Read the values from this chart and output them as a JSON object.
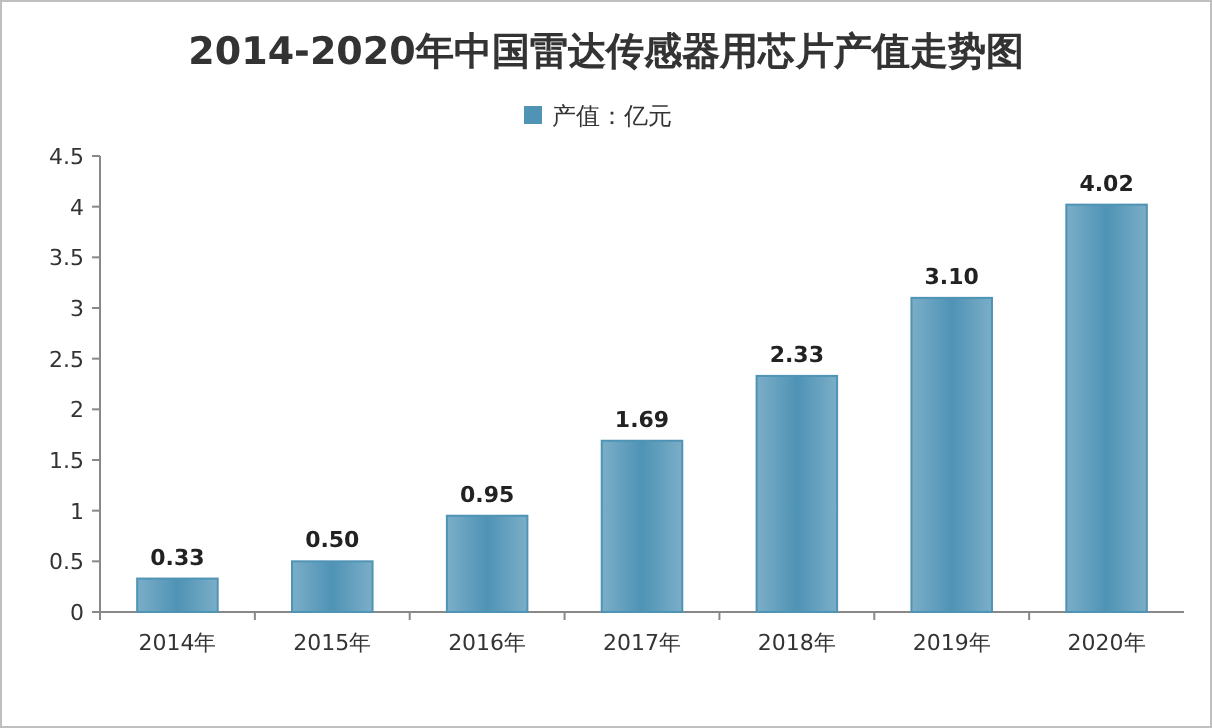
{
  "chart_data": {
    "type": "bar",
    "title": "2014-2020年中国雷达传感器用芯片产值走势图",
    "categories": [
      "2014年",
      "2015年",
      "2016年",
      "2017年",
      "2018年",
      "2019年",
      "2020年"
    ],
    "series": [
      {
        "name": "产值：亿元",
        "color": "#4f93b5",
        "values": [
          0.33,
          0.5,
          0.95,
          1.69,
          2.33,
          3.1,
          4.02
        ],
        "value_labels": [
          "0.33",
          "0.50",
          "0.95",
          "1.69",
          "2.33",
          "3.10",
          "4.02"
        ]
      }
    ],
    "ylim": [
      0,
      4.5
    ],
    "yticks": [
      0,
      0.5,
      1,
      1.5,
      2,
      2.5,
      3,
      3.5,
      4,
      4.5
    ],
    "grid": false,
    "legend": "top"
  }
}
